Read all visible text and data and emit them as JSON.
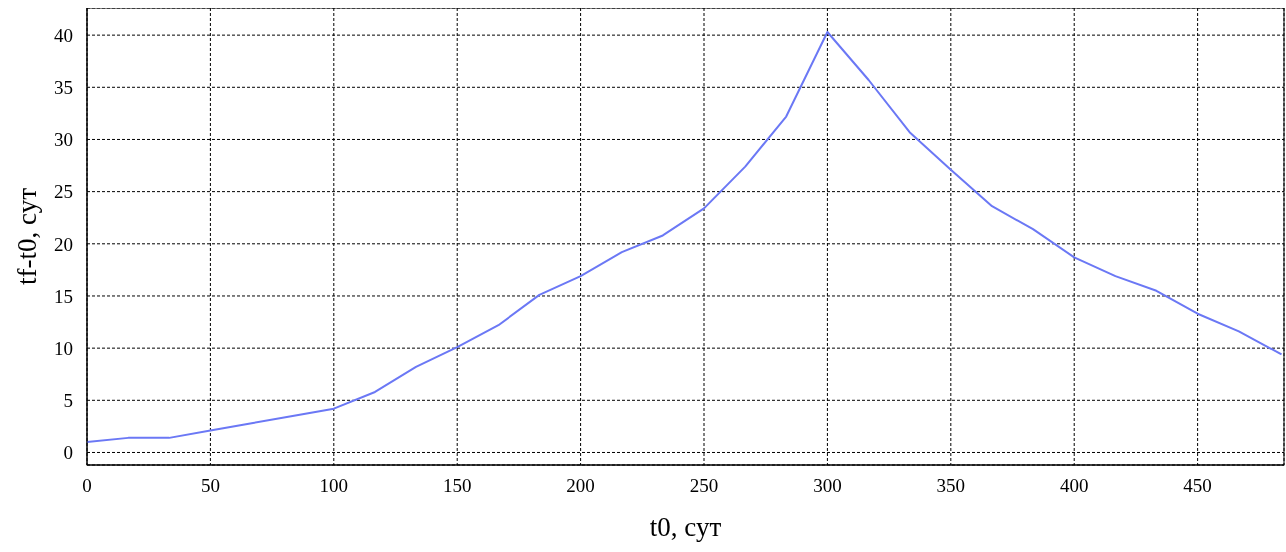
{
  "chart_data": {
    "type": "line",
    "xlabel": "t0, сут",
    "ylabel": "tf-t0, сут",
    "x": [
      0,
      16.7,
      33.3,
      50,
      66.7,
      83.3,
      100,
      116.7,
      133.3,
      150,
      166.7,
      183.3,
      200,
      216.7,
      233.3,
      250,
      266.7,
      283.3,
      300,
      316.7,
      333.3,
      350,
      366.7,
      383.3,
      400,
      416.7,
      433.3,
      450,
      466.7,
      484
    ],
    "series": [
      {
        "color": "#6b78f5",
        "values": [
          1.0,
          1.4,
          1.4,
          2.1,
          2.8,
          3.5,
          4.2,
          5.8,
          8.2,
          10.1,
          12.2,
          15.1,
          16.9,
          19.2,
          20.8,
          23.4,
          27.4,
          32.2,
          40.3,
          35.7,
          30.7,
          27.1,
          23.6,
          21.4,
          18.7,
          16.9,
          15.5,
          13.3,
          11.6,
          9.4
        ]
      }
    ],
    "xlim": [
      0,
      485
    ],
    "xticks": [
      0,
      50,
      100,
      150,
      200,
      250,
      300,
      350,
      400,
      450
    ],
    "ylim": [
      -1.2,
      42.6
    ],
    "yticks": [
      0,
      5,
      10,
      15,
      20,
      25,
      30,
      35,
      40
    ],
    "grid": true,
    "marker": "none",
    "line_style": "solid",
    "legend": false
  }
}
